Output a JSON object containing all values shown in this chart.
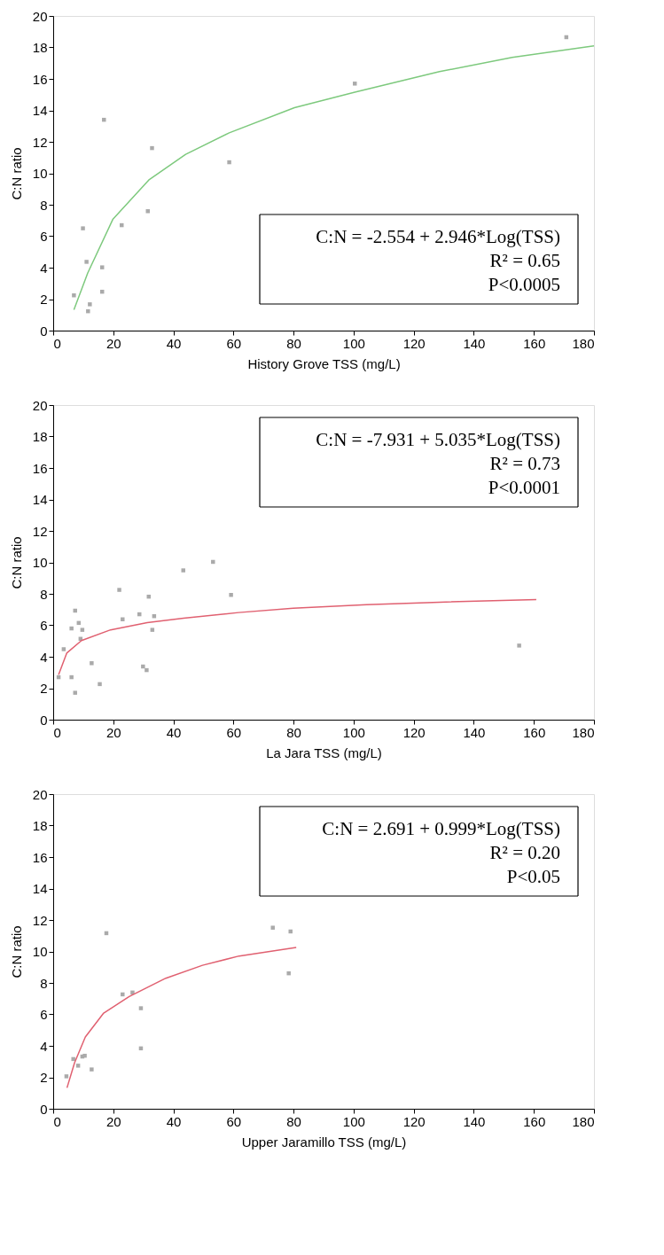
{
  "chart_data": [
    {
      "type": "scatter",
      "xlabel": "History Grove TSS (mg/L)",
      "ylabel": "C:N ratio",
      "xlim": [
        0,
        180
      ],
      "ylim": [
        0,
        20
      ],
      "xticks": [
        0,
        20,
        40,
        60,
        80,
        100,
        120,
        140,
        160,
        180
      ],
      "yticks": [
        0,
        2,
        4,
        6,
        8,
        10,
        12,
        14,
        16,
        18,
        20
      ],
      "grid": false,
      "annotations": [
        "C:N = -2.554 + 2.946*Log(TSS)",
        "R² = 0.65",
        "P<0.0005"
      ],
      "series": [
        {
          "type": "scatter",
          "marker": "square",
          "color": "#aaaaaa",
          "x": [
            6.9,
            9.9,
            11.1,
            12.2,
            11.6,
            16.3,
            16.3,
            16.9,
            22.8,
            31.5,
            32.9,
            58.6,
            100.4,
            170.8
          ],
          "values": [
            2.24,
            6.5,
            4.37,
            1.67,
            1.23,
            4.02,
            2.47,
            13.4,
            6.7,
            7.59,
            11.6,
            10.7,
            15.7,
            18.65
          ]
        },
        {
          "type": "line",
          "color": "#7dc97d",
          "x": [
            6.9,
            11.5,
            19.9,
            32,
            44.1,
            58.6,
            80.3,
            100.4,
            128.6,
            152.8,
            180
          ],
          "values": [
            1.33,
            3.66,
            7.09,
            9.6,
            11.2,
            12.57,
            14.17,
            15.15,
            16.46,
            17.37,
            18.1
          ]
        }
      ]
    },
    {
      "type": "scatter",
      "xlabel": "La Jara TSS (mg/L)",
      "ylabel": "C:N ratio",
      "xlim": [
        0,
        180
      ],
      "ylim": [
        0,
        20
      ],
      "xticks": [
        0,
        20,
        40,
        60,
        80,
        100,
        120,
        140,
        160,
        180
      ],
      "yticks": [
        0,
        2,
        4,
        6,
        8,
        10,
        12,
        14,
        16,
        18,
        20
      ],
      "grid": false,
      "annotations": [
        "C:N = -7.931 + 5.035*Log(TSS)",
        "R² = 0.73",
        "P<0.0001"
      ],
      "series": [
        {
          "type": "scatter",
          "marker": "square",
          "color": "#aaaaaa",
          "x": [
            1.8,
            3.5,
            6.1,
            6.1,
            7.3,
            7.3,
            8.5,
            9.1,
            9.7,
            12.8,
            15.5,
            22.0,
            23.1,
            28.7,
            29.9,
            31.1,
            31.8,
            33.0,
            33.6,
            43.3,
            53.2,
            59.2,
            155.1
          ],
          "values": [
            2.7,
            4.48,
            2.7,
            5.8,
            6.93,
            1.71,
            6.15,
            5.14,
            5.71,
            3.59,
            2.26,
            8.25,
            6.38,
            6.7,
            3.38,
            3.15,
            7.82,
            5.71,
            6.58,
            9.49,
            10.03,
            7.93,
            4.71
          ]
        },
        {
          "type": "line",
          "color": "#e06070",
          "x": [
            1.8,
            4.5,
            9.4,
            19.1,
            31.3,
            43.4,
            61.7,
            79.9,
            104.3,
            128.6,
            160.8
          ],
          "values": [
            2.86,
            4.23,
            5.03,
            5.71,
            6.17,
            6.45,
            6.81,
            7.09,
            7.31,
            7.47,
            7.63
          ]
        }
      ]
    },
    {
      "type": "scatter",
      "xlabel": "Upper Jaramillo TSS (mg/L)",
      "ylabel": "C:N ratio",
      "xlim": [
        0,
        180
      ],
      "ylim": [
        0,
        20
      ],
      "xticks": [
        0,
        20,
        40,
        60,
        80,
        100,
        120,
        140,
        160,
        180
      ],
      "yticks": [
        0,
        2,
        4,
        6,
        8,
        10,
        12,
        14,
        16,
        18,
        20
      ],
      "grid": false,
      "annotations": [
        "C:N = 2.691 + 0.999*Log(TSS)",
        "R² = 0.20",
        "P<0.05"
      ],
      "series": [
        {
          "type": "scatter",
          "marker": "square",
          "color": "#aaaaaa",
          "x": [
            4.4,
            6.7,
            8.3,
            9.7,
            10.5,
            12.8,
            17.7,
            23.1,
            26.4,
            29.2,
            29.2,
            73.1,
            78.4,
            79.0
          ],
          "values": [
            2.06,
            3.16,
            2.74,
            3.32,
            3.37,
            2.5,
            11.16,
            7.27,
            7.39,
            6.39,
            3.84,
            11.51,
            8.61,
            11.27
          ]
        },
        {
          "type": "line",
          "color": "#e06070",
          "x": [
            4.6,
            7.1,
            10.7,
            16.8,
            25.3,
            37.5,
            49.7,
            61.9,
            80.9
          ],
          "values": [
            1.33,
            2.92,
            4.56,
            6.08,
            7.13,
            8.3,
            9.12,
            9.71,
            10.25
          ]
        }
      ]
    }
  ]
}
